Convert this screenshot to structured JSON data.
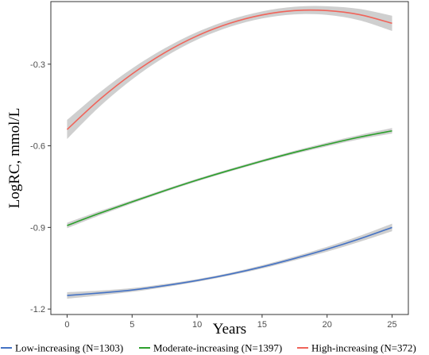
{
  "chart_data": {
    "type": "line",
    "xlabel": "Years",
    "ylabel": "LogRC, mmol/L",
    "xlim": [
      -1.25,
      26.25
    ],
    "ylim": [
      -1.22,
      -0.07
    ],
    "xticks": [
      0,
      5,
      10,
      15,
      20,
      25
    ],
    "xtick_labels": [
      "0",
      "5",
      "10",
      "15",
      "20",
      "25"
    ],
    "yticks": [
      -1.2,
      -0.9,
      -0.6,
      -0.3
    ],
    "ytick_labels": [
      "-1.2",
      "-0.9",
      "-0.6",
      "-0.3"
    ],
    "grid": false,
    "legend_position": "bottom",
    "x": [
      0,
      2.5,
      5,
      7.5,
      10,
      12.5,
      15,
      17.5,
      20,
      22.5,
      25
    ],
    "series": [
      {
        "name": "Low-increasing (N=1303)",
        "color": "#4472C4",
        "values": [
          -1.15,
          -1.141,
          -1.13,
          -1.114,
          -1.095,
          -1.072,
          -1.045,
          -1.014,
          -0.98,
          -0.942,
          -0.9
        ],
        "ci_half_width": [
          0.012,
          0.009,
          0.007,
          0.006,
          0.005,
          0.005,
          0.006,
          0.007,
          0.009,
          0.011,
          0.014
        ]
      },
      {
        "name": "Moderate-increasing (N=1397)",
        "color": "#2CA02C",
        "values": [
          -0.893,
          -0.848,
          -0.806,
          -0.765,
          -0.726,
          -0.69,
          -0.656,
          -0.624,
          -0.595,
          -0.568,
          -0.545
        ],
        "ci_half_width": [
          0.01,
          0.008,
          0.006,
          0.005,
          0.005,
          0.005,
          0.005,
          0.006,
          0.007,
          0.008,
          0.01
        ]
      },
      {
        "name": "High-increasing (N=372)",
        "color": "#F0645A",
        "values": [
          -0.54,
          -0.43,
          -0.336,
          -0.258,
          -0.196,
          -0.15,
          -0.119,
          -0.103,
          -0.103,
          -0.118,
          -0.15
        ],
        "ci_half_width": [
          0.035,
          0.026,
          0.02,
          0.016,
          0.014,
          0.013,
          0.013,
          0.014,
          0.016,
          0.021,
          0.028
        ]
      }
    ]
  },
  "colors": {
    "ci_band": "#BFBFBF",
    "axis": "#333333",
    "tick_label": "#4D4D4D"
  }
}
